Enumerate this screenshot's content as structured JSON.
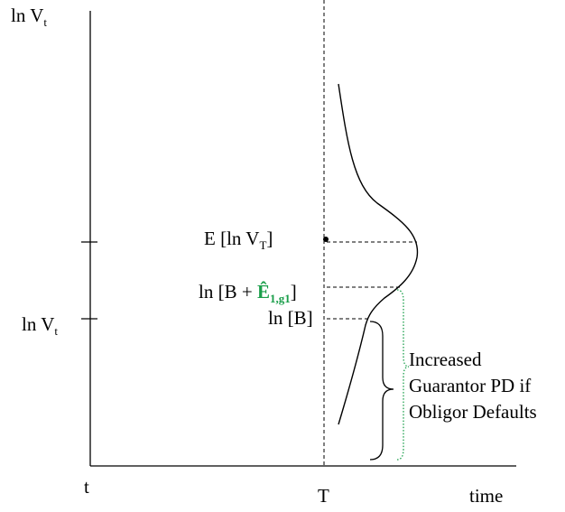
{
  "axes": {
    "y_axis_label_top": {
      "base": "ln V",
      "sub": "t"
    },
    "y_tick_label": {
      "base": "ln V",
      "sub": "t"
    },
    "x_origin_label": "t",
    "x_T_label": "T",
    "x_axis_label": "time"
  },
  "annotations": {
    "expected_label": {
      "text": "E [ln V",
      "sub": "T",
      "close": "]"
    },
    "threshold_guarantor": {
      "open": "ln [B + ",
      "accent": "Ê",
      "accent_sub": "1,g1",
      "close": "]"
    },
    "threshold_obligor": "ln [B]"
  },
  "brace_caption": [
    "Increased",
    "Guarantor PD if",
    "Obligor Defaults"
  ],
  "colors": {
    "ink": "#000000",
    "accent": "#1a9e4a"
  }
}
